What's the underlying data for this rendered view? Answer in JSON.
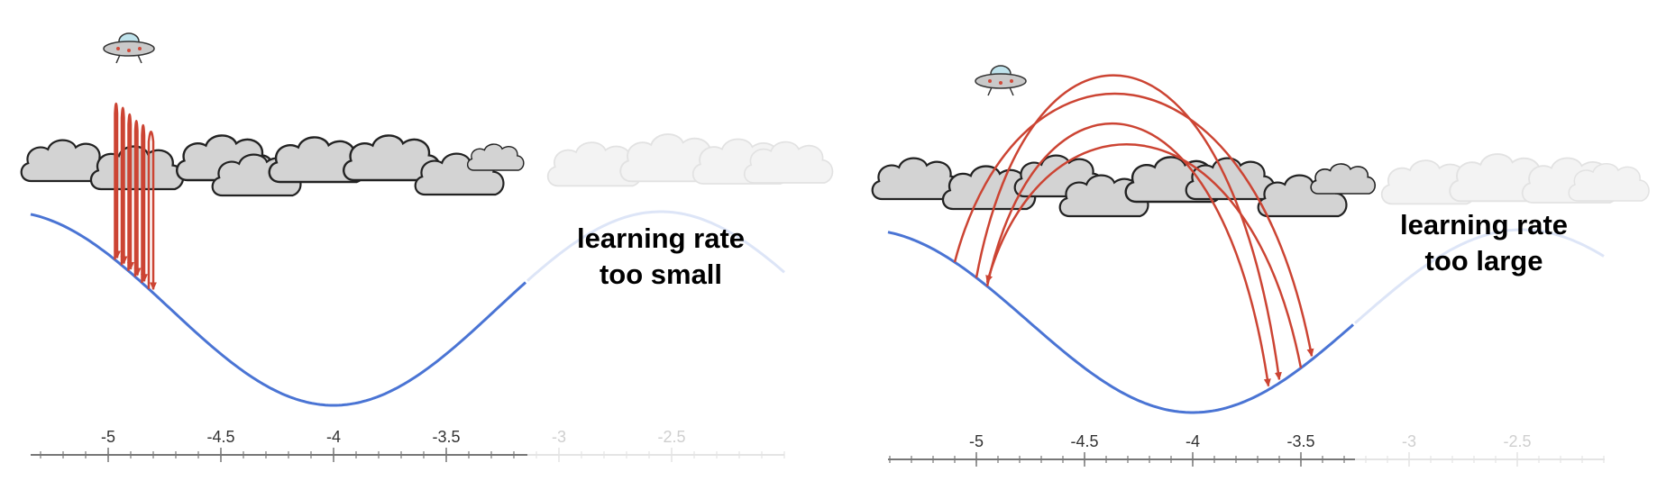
{
  "panels": [
    {
      "id": "small",
      "caption_lines": [
        "learning rate",
        "too small"
      ],
      "tick_labels": [
        "-5",
        "-4.5",
        "-4",
        "-3.5",
        "-3",
        "-2.5"
      ],
      "faded_ticks": [
        "-3",
        "-2.5"
      ],
      "jumps": [
        {
          "from": -4.97,
          "to": -4.96,
          "height": 0.8
        },
        {
          "from": -4.94,
          "to": -4.93,
          "height": 0.78
        },
        {
          "from": -4.91,
          "to": -4.9,
          "height": 0.75
        },
        {
          "from": -4.88,
          "to": -4.87,
          "height": 0.72
        },
        {
          "from": -4.85,
          "to": -4.84,
          "height": 0.7
        },
        {
          "from": -4.82,
          "to": -4.8,
          "height": 0.67
        }
      ]
    },
    {
      "id": "large",
      "caption_lines": [
        "learning rate",
        "too large"
      ],
      "tick_labels": [
        "-5",
        "-4.5",
        "-4",
        "-3.5",
        "-3",
        "-2.5"
      ],
      "faded_ticks": [
        "-3",
        "-2.5"
      ],
      "jumps": [
        {
          "from": -5.0,
          "to": -3.6,
          "height": 1.0
        },
        {
          "from": -5.1,
          "to": -3.45,
          "height": 0.85
        },
        {
          "from": -4.95,
          "to": -3.65,
          "height": 0.7
        },
        {
          "from": -3.5,
          "to": -4.95,
          "height": 0.55
        }
      ]
    }
  ],
  "colors": {
    "curve": "#4a74d4",
    "curve_faded": "#dde5f7",
    "arrow": "#cc4433",
    "cloud_fill": "#d3d3d3",
    "cloud_stroke": "#222222",
    "axis": "#777777"
  },
  "icons": {
    "ufo": "ufo-icon",
    "cloud": "cloud-icon"
  }
}
